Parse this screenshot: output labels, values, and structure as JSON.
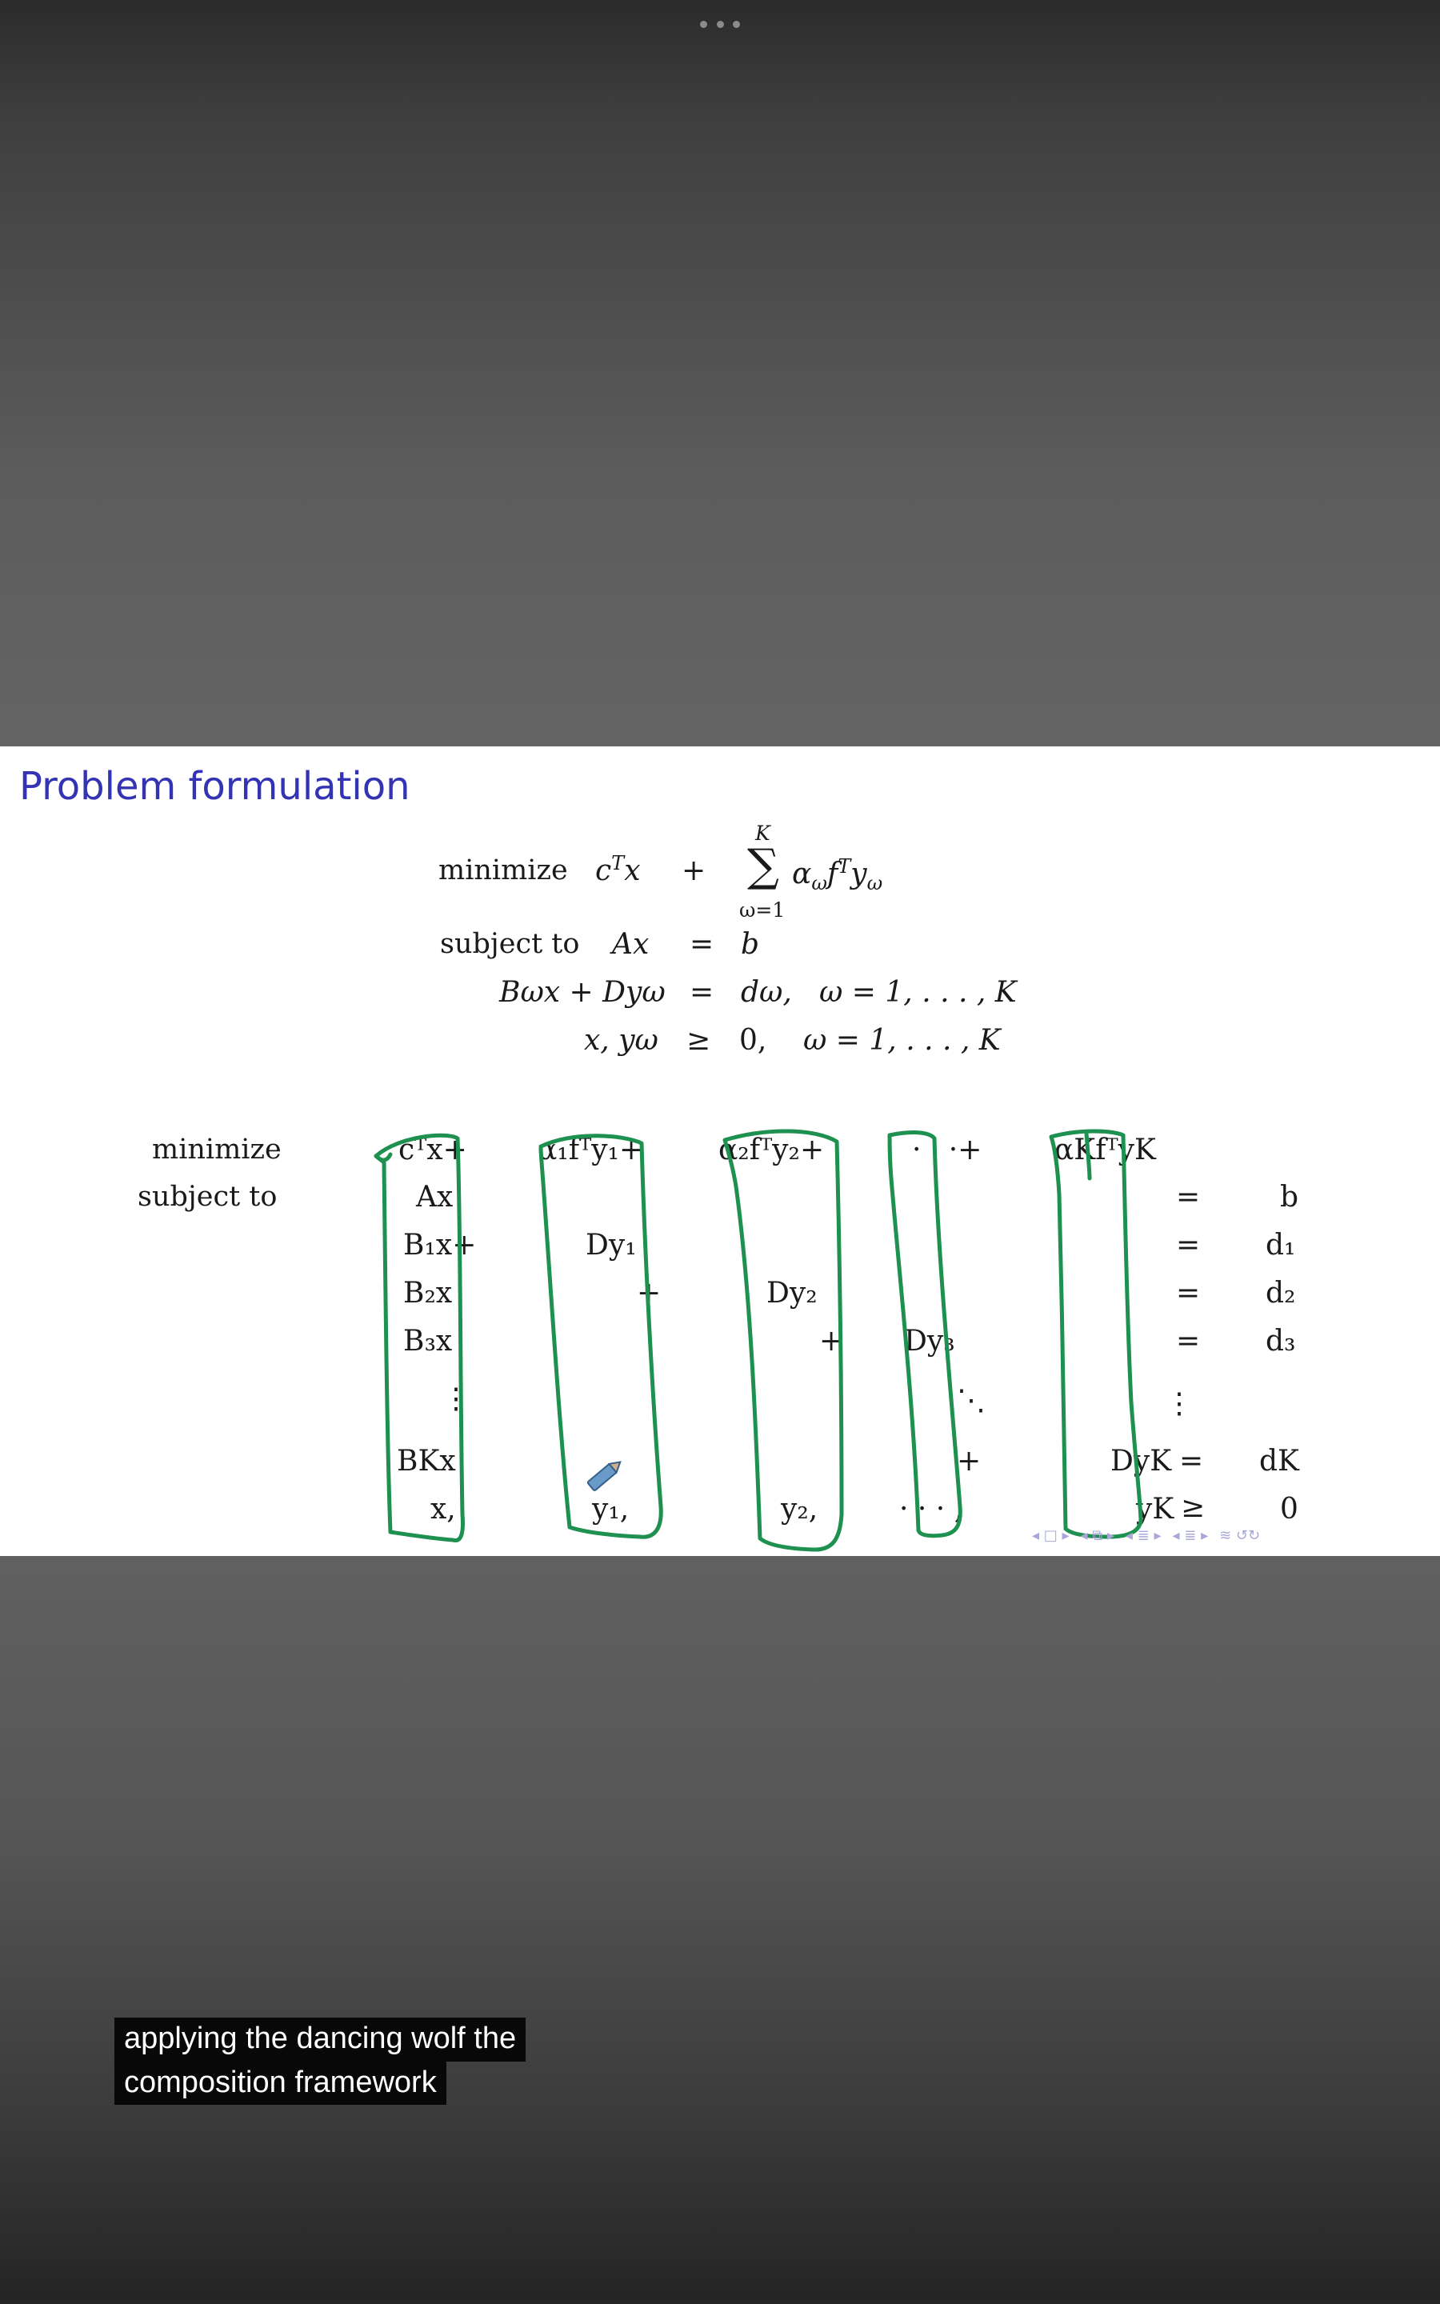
{
  "slide": {
    "title": "Problem formulation",
    "nav_icons": [
      "nav-first-icon",
      "nav-prev-icon",
      "nav-next-icon",
      "nav-section-icon",
      "nav-search-icon"
    ]
  },
  "formulation": {
    "minimize_label": "minimize",
    "subject_to_label": "subject to",
    "objective_first": "c",
    "sum_upper": "K",
    "sum_lower": "ω=1",
    "sum_term": "α",
    "constraints": [
      {
        "lhs": "Ax",
        "rel": "=",
        "rhs": "b",
        "range": ""
      },
      {
        "lhs": "Bωx + Dyω",
        "rel": "=",
        "rhs": "dω,",
        "range": "ω = 1, . . . , K"
      },
      {
        "lhs": "x, yω",
        "rel": "≥",
        "rhs": "0,",
        "range": "ω = 1, . . . , K"
      }
    ]
  },
  "extensive_form": {
    "minimize_label": "minimize",
    "subject_to_label": "subject to",
    "rows": {
      "objective": [
        "cᵀx+",
        "α₁fᵀy₁+",
        "α₂fᵀy₂+",
        "· · ·+",
        "αKfᵀyK"
      ],
      "first_stage": [
        "Ax",
        "=",
        "b"
      ],
      "scenario_1": [
        "B₁x+",
        "Dy₁",
        "=",
        "d₁"
      ],
      "scenario_2": [
        "B₂x",
        "+",
        "Dy₂",
        "=",
        "d₂"
      ],
      "scenario_3": [
        "B₃x",
        "+",
        "Dy₃",
        "=",
        "d₃"
      ],
      "dots_row": [
        "⋮",
        "⋱",
        "⋮"
      ],
      "scenario_K": [
        "BKx",
        "+",
        "DyK",
        "=",
        "dK"
      ],
      "nonneg": [
        "x,",
        "y₁,",
        "y₂,",
        "· · · ,",
        "yK",
        "≥",
        "0"
      ]
    }
  },
  "caption": {
    "line1": "applying the dancing wolf the",
    "line2": "composition framework"
  },
  "colors": {
    "title": "#3333b3",
    "ink": "#1e9050",
    "caption_bg": "#080808",
    "caption_text": "#ffffff"
  }
}
